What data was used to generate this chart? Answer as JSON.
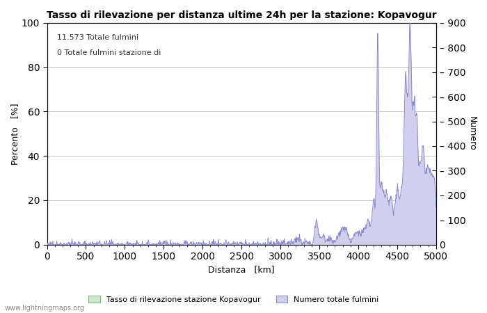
{
  "title": "Tasso di rilevazione per distanza ultime 24h per la stazione: Kopavogur",
  "xlabel": "Distanza   [km]",
  "ylabel_left": "Percento   [%]",
  "ylabel_right": "Numero",
  "annotation_line1": "11.573 Totale fulmini",
  "annotation_line2": "0 Totale fulmini stazione di",
  "xlim": [
    0,
    5000
  ],
  "ylim_left": [
    0,
    100
  ],
  "ylim_right": [
    0,
    900
  ],
  "xticks": [
    0,
    500,
    1000,
    1500,
    2000,
    2500,
    3000,
    3500,
    4000,
    4500,
    5000
  ],
  "yticks_left": [
    0,
    20,
    40,
    60,
    80,
    100
  ],
  "yticks_right": [
    0,
    100,
    200,
    300,
    400,
    500,
    600,
    700,
    800,
    900
  ],
  "legend_label_green": "Tasso di rilevazione stazione Kopavogur",
  "legend_label_blue": "Numero totale fulmini",
  "watermark": "www.lightningmaps.org",
  "line_color": "#8888cc",
  "fill_color_blue": "#d0d0ee",
  "fill_color_green": "#cceecc",
  "background_color": "#ffffff",
  "grid_color": "#bbbbbb"
}
